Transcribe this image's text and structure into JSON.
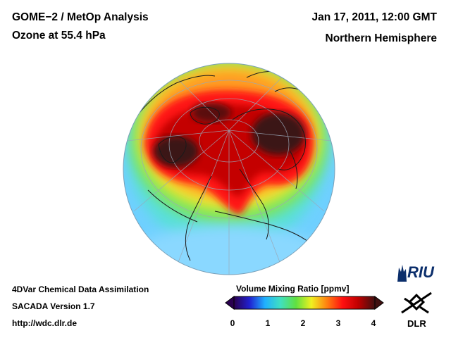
{
  "header": {
    "title_line1": "GOME−2 / MetOp Analysis",
    "title_line2": "Ozone at 55.4 hPa",
    "date": "Jan 17, 2011, 12:00 GMT",
    "region": "Northern Hemisphere"
  },
  "footer": {
    "line1": "4DVar Chemical Data Assimilation",
    "line2": "SACADA Version 1.7",
    "line3": "http://wdc.dlr.de"
  },
  "colorbar": {
    "title": "Volume Mixing Ratio [ppmv]",
    "ticks": [
      "0",
      "1",
      "2",
      "3",
      "4"
    ],
    "min": 0,
    "max": 4,
    "colors": [
      "#2a0050",
      "#2020d0",
      "#20b0ff",
      "#40e0c0",
      "#60e040",
      "#f0f020",
      "#ff8010",
      "#ff1010",
      "#c00000",
      "#401010"
    ]
  },
  "logos": {
    "riu": "RIU",
    "dlr": "DLR"
  },
  "map": {
    "projection": "orthographic-north-polar",
    "field": "ozone-volume-mixing-ratio",
    "high_values_region": "polar vortex collar (dark red/brown)"
  }
}
